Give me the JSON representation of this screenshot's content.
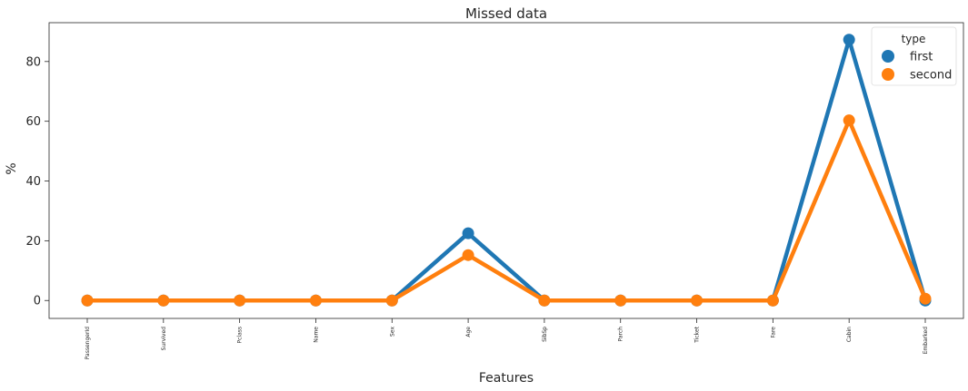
{
  "chart_data": {
    "type": "line",
    "title": "Missed data",
    "xlabel": "Features",
    "ylabel": "%",
    "categories": [
      "PassengerId",
      "Survived",
      "Pclass",
      "Name",
      "Sex",
      "Age",
      "SibSp",
      "Parch",
      "Ticket",
      "Fare",
      "Cabin",
      "Embarked"
    ],
    "yticks": [
      0,
      20,
      40,
      60,
      80
    ],
    "ylim": [
      -6,
      93
    ],
    "grid": false,
    "legend": {
      "title": "type",
      "placement": "top-right"
    },
    "series": [
      {
        "name": "first",
        "color": "#1f77b4",
        "values": [
          0,
          0,
          0,
          0,
          0,
          22.5,
          0,
          0,
          0,
          0,
          87.3,
          0
        ]
      },
      {
        "name": "second",
        "color": "#ff7f0e",
        "values": [
          0,
          0,
          0,
          0,
          0,
          15.2,
          0,
          0,
          0,
          0,
          60.3,
          0.6
        ]
      }
    ]
  }
}
